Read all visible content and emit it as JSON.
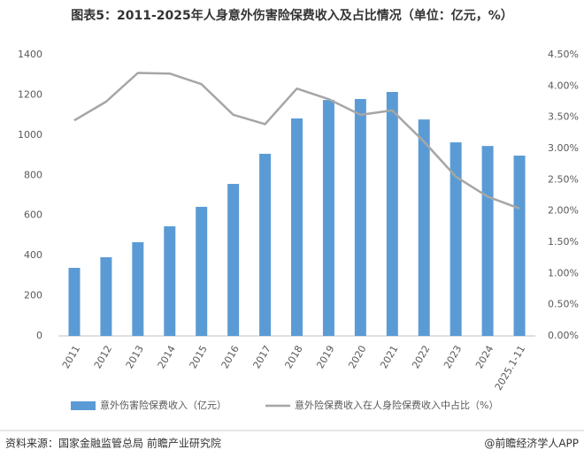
{
  "chart_data": {
    "type": "bar-line",
    "title": "图表5：2011-2025年人身意外伤害险保费收入及占比情况（单位：亿元，%）",
    "categories": [
      "2011",
      "2012",
      "2013",
      "2014",
      "2015",
      "2016",
      "2017",
      "2018",
      "2019",
      "2020",
      "2021",
      "2022",
      "2023",
      "2024",
      "2025.1-11"
    ],
    "series": [
      {
        "name": "意外伤害险保费收入（亿元）",
        "type": "bar",
        "color": "#5b9bd5",
        "values": [
          339,
          392,
          467,
          546,
          643,
          757,
          907,
          1083,
          1175,
          1180,
          1215,
          1078,
          964,
          946,
          898
        ]
      },
      {
        "name": "意外险保费收入在人身险保费收入中占比（%）",
        "type": "line",
        "color": "#a6a6a6",
        "axis": "y2",
        "values": [
          3.45,
          3.75,
          4.21,
          4.2,
          4.03,
          3.54,
          3.39,
          3.96,
          3.79,
          3.54,
          3.61,
          3.11,
          2.55,
          2.23,
          2.04
        ]
      }
    ],
    "ylim": [
      0,
      1400
    ],
    "yticks": [
      0,
      200,
      400,
      600,
      800,
      1000,
      1200,
      1400
    ],
    "y2lim": [
      0,
      4.5
    ],
    "y2ticks": [
      {
        "value": 0,
        "label": "0.00%"
      },
      {
        "value": 0.5,
        "label": "0.50%"
      },
      {
        "value": 1,
        "label": "1.00%"
      },
      {
        "value": 1.5,
        "label": "1.50%"
      },
      {
        "value": 2,
        "label": "2.00%"
      },
      {
        "value": 2.5,
        "label": "2.50%"
      },
      {
        "value": 3,
        "label": "3.00%"
      },
      {
        "value": 3.5,
        "label": "3.50%"
      },
      {
        "value": 4,
        "label": "4.00%"
      },
      {
        "value": 4.5,
        "label": "4.50%"
      }
    ],
    "grid": false,
    "legend": "bottom",
    "source": "资料来源：国家金融监管总局 前瞻产业研究院",
    "credit": "@前瞻经济学人APP"
  }
}
